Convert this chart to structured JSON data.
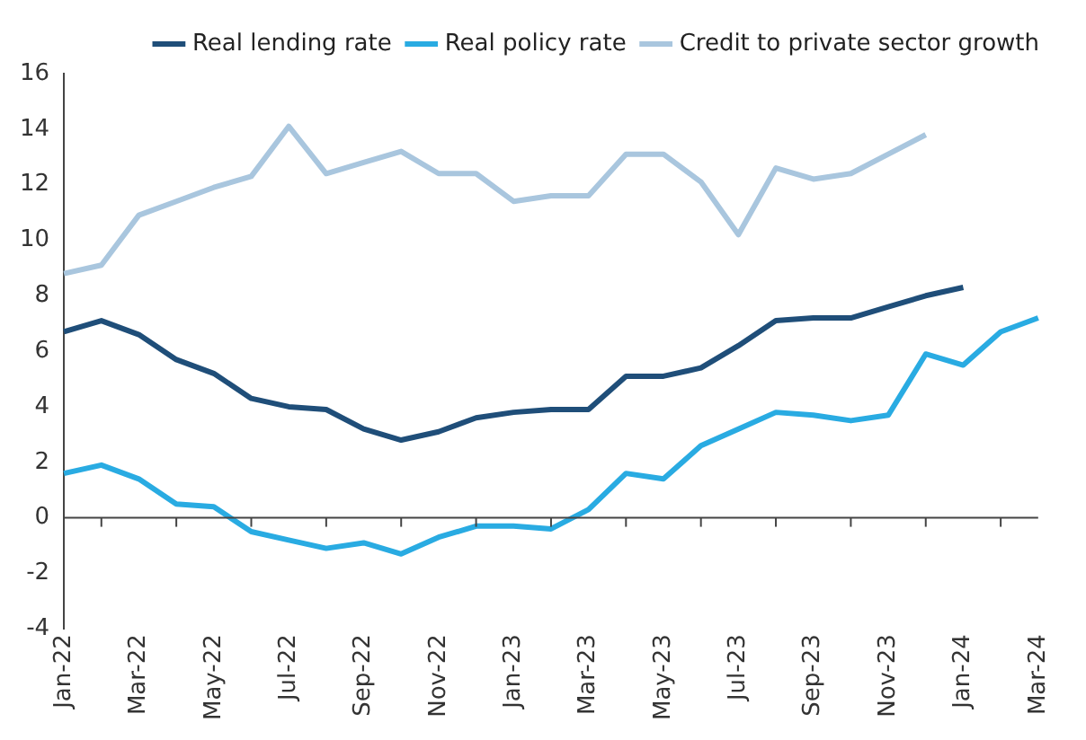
{
  "chart_data": {
    "type": "line",
    "categories": [
      "Jan-22",
      null,
      "Mar-22",
      null,
      "May-22",
      null,
      "Jul-22",
      null,
      "Sep-22",
      null,
      "Nov-22",
      null,
      "Jan-23",
      null,
      "Mar-23",
      null,
      "May-23",
      null,
      "Jul-23",
      null,
      "Sep-23",
      null,
      "Nov-23",
      null,
      "Jan-24",
      null,
      "Mar-24"
    ],
    "series": [
      {
        "name": "Real lending rate",
        "color": "#1f4e79",
        "values": [
          6.7,
          7.1,
          6.6,
          5.7,
          5.2,
          4.3,
          4.0,
          3.9,
          3.2,
          2.8,
          3.1,
          3.6,
          3.8,
          3.9,
          3.9,
          5.1,
          5.1,
          5.4,
          6.2,
          7.1,
          7.2,
          7.2,
          7.6,
          8.0,
          8.3,
          null,
          null
        ]
      },
      {
        "name": "Real policy rate",
        "color": "#29abe2",
        "values": [
          1.6,
          1.9,
          1.4,
          0.5,
          0.4,
          -0.5,
          -0.8,
          -1.1,
          -0.9,
          -1.3,
          -0.7,
          -0.3,
          -0.3,
          -0.4,
          0.3,
          1.6,
          1.4,
          2.6,
          3.2,
          3.8,
          3.7,
          3.5,
          3.7,
          5.9,
          5.5,
          6.7,
          7.2
        ]
      },
      {
        "name": "Credit to private sector growth",
        "color": "#a9c6de",
        "values": [
          8.8,
          9.1,
          10.9,
          11.4,
          11.9,
          12.3,
          14.1,
          12.4,
          12.8,
          13.2,
          12.4,
          12.4,
          11.4,
          11.6,
          11.6,
          13.1,
          13.1,
          12.1,
          10.2,
          12.6,
          12.2,
          12.4,
          13.1,
          13.8,
          null,
          null,
          null
        ]
      }
    ],
    "ylim": [
      -4,
      16
    ],
    "yticks": [
      -4,
      -2,
      0,
      2,
      4,
      6,
      8,
      10,
      12,
      14,
      16
    ],
    "legend": "top",
    "marker": "none",
    "line_style": "solid"
  }
}
